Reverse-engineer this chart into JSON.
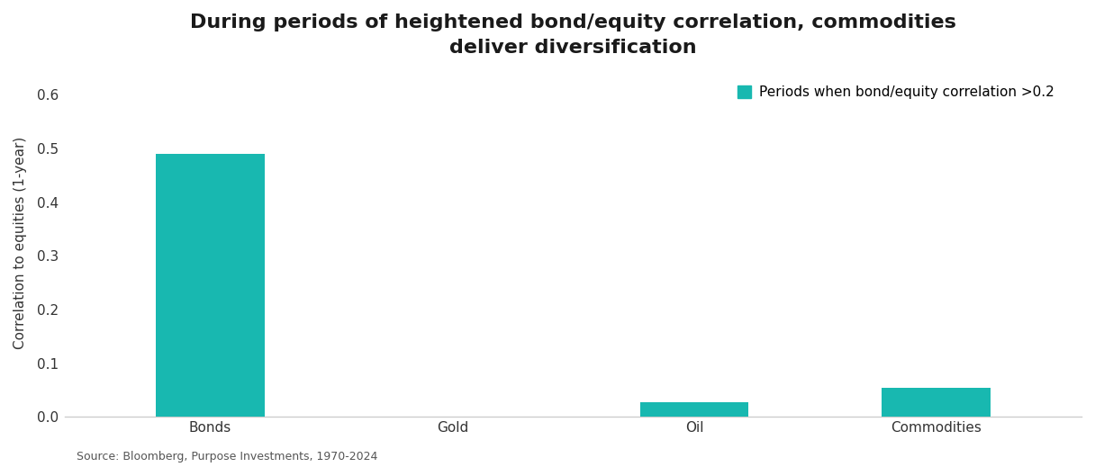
{
  "title": "During periods of heightened bond/equity correlation, commodities\ndeliver diversification",
  "categories": [
    "Bonds",
    "Gold",
    "Oil",
    "Commodities"
  ],
  "values": [
    0.49,
    0.0,
    0.028,
    0.055
  ],
  "bar_color": "#18B8B0",
  "ylabel": "Correlation to equities (1-year)",
  "ylim": [
    0,
    0.65
  ],
  "yticks": [
    0.0,
    0.1,
    0.2,
    0.3,
    0.4,
    0.5,
    0.6
  ],
  "legend_label": "Periods when bond/equity correlation >0.2",
  "source_text": "Source: Bloomberg, Purpose Investments, 1970-2024",
  "background_color": "#ffffff",
  "title_fontsize": 16,
  "axis_fontsize": 11,
  "tick_fontsize": 11,
  "source_fontsize": 9,
  "bar_width": 0.45
}
